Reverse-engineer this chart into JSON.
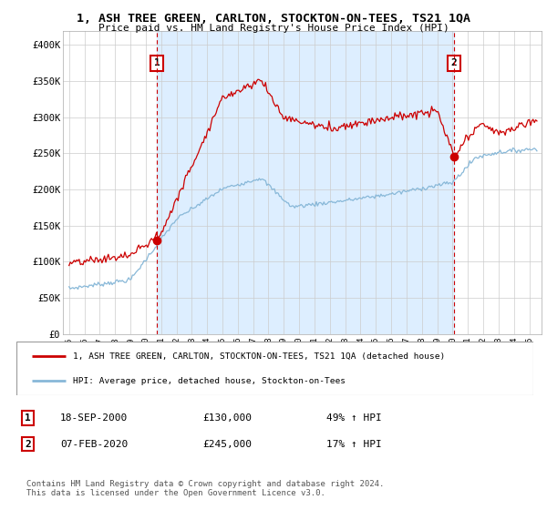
{
  "title": "1, ASH TREE GREEN, CARLTON, STOCKTON-ON-TEES, TS21 1QA",
  "subtitle": "Price paid vs. HM Land Registry's House Price Index (HPI)",
  "ylim": [
    0,
    420000
  ],
  "yticks": [
    0,
    50000,
    100000,
    150000,
    200000,
    250000,
    300000,
    350000,
    400000
  ],
  "ytick_labels": [
    "£0",
    "£50K",
    "£100K",
    "£150K",
    "£200K",
    "£250K",
    "£300K",
    "£350K",
    "£400K"
  ],
  "xlim_start": 1994.6,
  "xlim_end": 2025.8,
  "xtick_years": [
    1995,
    1996,
    1997,
    1998,
    1999,
    2000,
    2001,
    2002,
    2003,
    2004,
    2005,
    2006,
    2007,
    2008,
    2009,
    2010,
    2011,
    2012,
    2013,
    2014,
    2015,
    2016,
    2017,
    2018,
    2019,
    2020,
    2021,
    2022,
    2023,
    2024,
    2025
  ],
  "red_line_color": "#cc0000",
  "blue_line_color": "#88b8d8",
  "shade_color": "#ddeeff",
  "marker1_date": 2000.72,
  "marker1_value": 130000,
  "marker2_date": 2020.1,
  "marker2_value": 245000,
  "vline1_x": 2000.72,
  "vline2_x": 2020.1,
  "legend_line1": "1, ASH TREE GREEN, CARLTON, STOCKTON-ON-TEES, TS21 1QA (detached house)",
  "legend_line2": "HPI: Average price, detached house, Stockton-on-Tees",
  "note1_num": "1",
  "note1_date": "18-SEP-2000",
  "note1_price": "£130,000",
  "note1_hpi": "49% ↑ HPI",
  "note2_num": "2",
  "note2_date": "07-FEB-2020",
  "note2_price": "£245,000",
  "note2_hpi": "17% ↑ HPI",
  "footer": "Contains HM Land Registry data © Crown copyright and database right 2024.\nThis data is licensed under the Open Government Licence v3.0.",
  "background_color": "#ffffff",
  "grid_color": "#cccccc"
}
